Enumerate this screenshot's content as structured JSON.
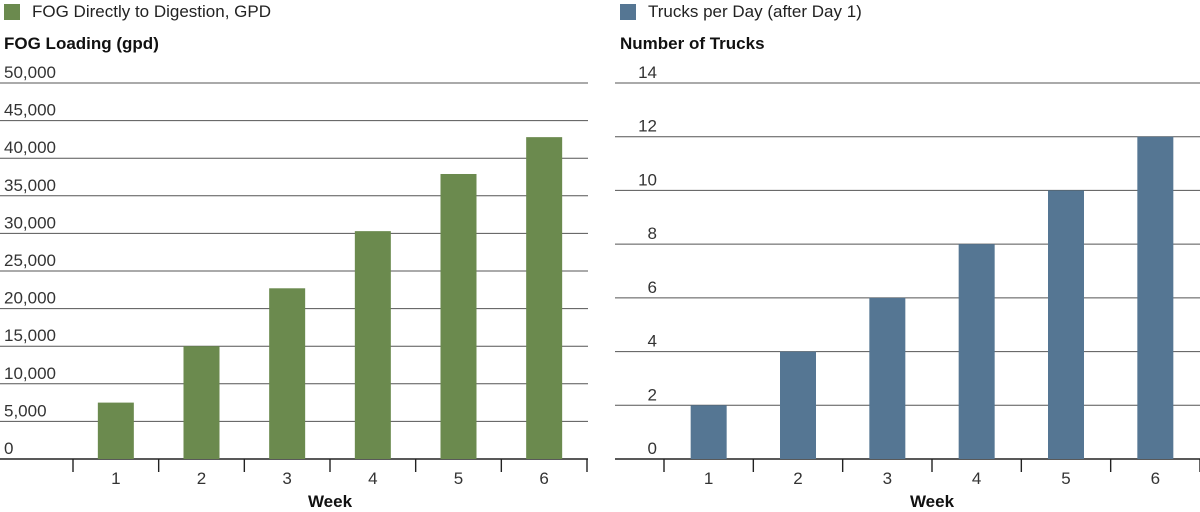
{
  "chart_data": [
    {
      "type": "bar",
      "legend": {
        "label": "FOG Directly to Digestion, GPD",
        "color": "#6b8a4e"
      },
      "ylabel": "FOG Loading (gpd)",
      "xlabel": "Week",
      "categories": [
        "1",
        "2",
        "3",
        "4",
        "5",
        "6"
      ],
      "values": [
        7500,
        15000,
        22700,
        30300,
        37900,
        42800
      ],
      "ylim": [
        0,
        50000
      ],
      "yticks": [
        0,
        5000,
        10000,
        15000,
        20000,
        25000,
        30000,
        35000,
        40000,
        45000,
        50000
      ],
      "ytick_labels": [
        "0",
        "5,000",
        "10,000",
        "15,000",
        "20,000",
        "25,000",
        "30,000",
        "35,000",
        "40,000",
        "45,000",
        "50,000"
      ],
      "grid": true
    },
    {
      "type": "bar",
      "legend": {
        "label": "Trucks per Day (after Day 1)",
        "color": "#557693"
      },
      "ylabel": "Number of Trucks",
      "xlabel": "Week",
      "categories": [
        "1",
        "2",
        "3",
        "4",
        "5",
        "6"
      ],
      "values": [
        2,
        4,
        6,
        8,
        10,
        12
      ],
      "ylim": [
        0,
        14
      ],
      "yticks": [
        0,
        2,
        4,
        6,
        8,
        10,
        12,
        14
      ],
      "ytick_labels": [
        "0",
        "2",
        "4",
        "6",
        "8",
        "10",
        "12",
        "14"
      ],
      "grid": true
    }
  ]
}
